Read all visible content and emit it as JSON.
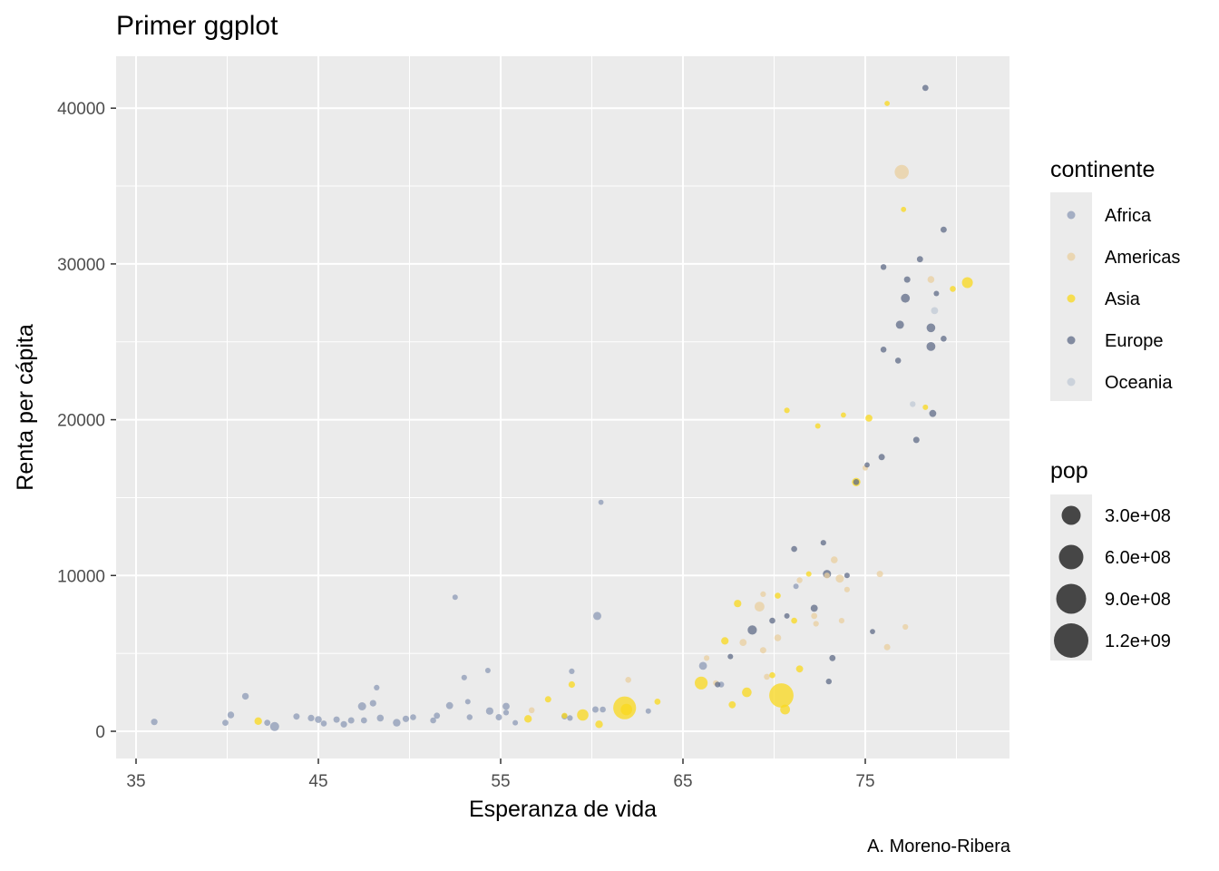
{
  "title": "Primer ggplot",
  "caption": "A. Moreno-Ribera",
  "colors": {
    "panel": "#ebebeb",
    "grid": "#ffffff",
    "Africa": "#8c9ab5",
    "Americas": "#e9cf9f",
    "Asia": "#fad81c",
    "Europe": "#5f6b87",
    "Oceania": "#c0cad6"
  },
  "chart_data": {
    "type": "scatter",
    "xlabel": "Esperanza de vida",
    "ylabel": "Renta per cápita",
    "xlim": [
      35,
      82
    ],
    "ylim": [
      0,
      42000
    ],
    "x_ticks": [
      35,
      45,
      55,
      65,
      75
    ],
    "x_tick_labels": [
      "35",
      "45",
      "55",
      "65",
      "75"
    ],
    "y_ticks": [
      0,
      10000,
      20000,
      30000,
      40000
    ],
    "y_tick_labels": [
      "0",
      "10000",
      "20000",
      "30000",
      "40000"
    ],
    "grid": true,
    "legend_position": "right",
    "color_legend": {
      "title": "continente",
      "entries": [
        "Africa",
        "Americas",
        "Asia",
        "Europe",
        "Oceania"
      ]
    },
    "size_legend": {
      "title": "pop",
      "entries": [
        {
          "label": "3.0e+08",
          "value": 300000000
        },
        {
          "label": "6.0e+08",
          "value": 600000000
        },
        {
          "label": "9.0e+08",
          "value": 900000000
        },
        {
          "label": "1.2e+09",
          "value": 1200000000
        }
      ]
    },
    "series": [
      {
        "name": "Africa",
        "points": [
          {
            "x": 36.0,
            "y": 600,
            "pop": 12000000
          },
          {
            "x": 39.9,
            "y": 550,
            "pop": 8000000
          },
          {
            "x": 40.2,
            "y": 1050,
            "pop": 13000000
          },
          {
            "x": 41.0,
            "y": 2250,
            "pop": 14000000
          },
          {
            "x": 42.2,
            "y": 550,
            "pop": 8000000
          },
          {
            "x": 42.6,
            "y": 300,
            "pop": 65000000
          },
          {
            "x": 43.8,
            "y": 950,
            "pop": 10000000
          },
          {
            "x": 44.6,
            "y": 850,
            "pop": 12000000
          },
          {
            "x": 45.0,
            "y": 750,
            "pop": 15000000
          },
          {
            "x": 45.3,
            "y": 500,
            "pop": 6000000
          },
          {
            "x": 46.0,
            "y": 750,
            "pop": 10000000
          },
          {
            "x": 46.4,
            "y": 450,
            "pop": 12000000
          },
          {
            "x": 46.8,
            "y": 700,
            "pop": 9000000
          },
          {
            "x": 47.4,
            "y": 1600,
            "pop": 40000000
          },
          {
            "x": 47.5,
            "y": 700,
            "pop": 7000000
          },
          {
            "x": 48.0,
            "y": 1800,
            "pop": 12000000
          },
          {
            "x": 48.2,
            "y": 2800,
            "pop": 3000000
          },
          {
            "x": 48.4,
            "y": 850,
            "pop": 15000000
          },
          {
            "x": 49.3,
            "y": 550,
            "pop": 30000000
          },
          {
            "x": 49.8,
            "y": 800,
            "pop": 11000000
          },
          {
            "x": 50.2,
            "y": 900,
            "pop": 5000000
          },
          {
            "x": 51.3,
            "y": 700,
            "pop": 6000000
          },
          {
            "x": 51.5,
            "y": 1000,
            "pop": 8000000
          },
          {
            "x": 52.2,
            "y": 1650,
            "pop": 20000000
          },
          {
            "x": 52.5,
            "y": 8600,
            "pop": 2000000
          },
          {
            "x": 53.0,
            "y": 3450,
            "pop": 3000000
          },
          {
            "x": 53.2,
            "y": 1900,
            "pop": 2000000
          },
          {
            "x": 53.3,
            "y": 900,
            "pop": 4000000
          },
          {
            "x": 54.3,
            "y": 3900,
            "pop": 2000000
          },
          {
            "x": 54.4,
            "y": 1300,
            "pop": 25000000
          },
          {
            "x": 54.9,
            "y": 900,
            "pop": 10000000
          },
          {
            "x": 55.3,
            "y": 1600,
            "pop": 18000000
          },
          {
            "x": 55.3,
            "y": 1200,
            "pop": 3000000
          },
          {
            "x": 55.8,
            "y": 550,
            "pop": 2000000
          },
          {
            "x": 58.5,
            "y": 950,
            "pop": 5000000
          },
          {
            "x": 58.8,
            "y": 850,
            "pop": 3000000
          },
          {
            "x": 58.9,
            "y": 3850,
            "pop": 3000000
          },
          {
            "x": 60.2,
            "y": 1400,
            "pop": 10000000
          },
          {
            "x": 60.3,
            "y": 7400,
            "pop": 40000000
          },
          {
            "x": 60.5,
            "y": 14700,
            "pop": 1000000
          },
          {
            "x": 60.6,
            "y": 1400,
            "pop": 6000000
          },
          {
            "x": 63.1,
            "y": 1300,
            "pop": 2000000
          },
          {
            "x": 66.1,
            "y": 4200,
            "pop": 35000000
          },
          {
            "x": 67.1,
            "y": 3000,
            "pop": 4000000
          },
          {
            "x": 71.2,
            "y": 9300,
            "pop": 2000000
          }
        ]
      },
      {
        "name": "Americas",
        "points": [
          {
            "x": 56.7,
            "y": 1350,
            "pop": 5000000
          },
          {
            "x": 62.0,
            "y": 3300,
            "pop": 5000000
          },
          {
            "x": 66.3,
            "y": 4700,
            "pop": 3000000
          },
          {
            "x": 66.8,
            "y": 3100,
            "pop": 3000000
          },
          {
            "x": 68.3,
            "y": 5700,
            "pop": 18000000
          },
          {
            "x": 69.2,
            "y": 8000,
            "pop": 88000000
          },
          {
            "x": 69.4,
            "y": 5200,
            "pop": 9000000
          },
          {
            "x": 69.4,
            "y": 8800,
            "pop": 3000000
          },
          {
            "x": 69.6,
            "y": 3500,
            "pop": 6000000
          },
          {
            "x": 70.2,
            "y": 6000,
            "pop": 15000000
          },
          {
            "x": 71.4,
            "y": 9700,
            "pop": 4000000
          },
          {
            "x": 72.2,
            "y": 7400,
            "pop": 7000000
          },
          {
            "x": 72.3,
            "y": 6900,
            "pop": 3000000
          },
          {
            "x": 72.9,
            "y": 10000,
            "pop": 4000000
          },
          {
            "x": 73.3,
            "y": 11000,
            "pop": 15000000
          },
          {
            "x": 73.6,
            "y": 9800,
            "pop": 40000000
          },
          {
            "x": 73.7,
            "y": 7100,
            "pop": 3000000
          },
          {
            "x": 74.0,
            "y": 9100,
            "pop": 3000000
          },
          {
            "x": 75.0,
            "y": 16900,
            "pop": 2000000
          },
          {
            "x": 75.8,
            "y": 10100,
            "pop": 10000000
          },
          {
            "x": 76.2,
            "y": 5400,
            "pop": 10000000
          },
          {
            "x": 77.2,
            "y": 6700,
            "pop": 3000000
          },
          {
            "x": 77.0,
            "y": 35900,
            "pop": 300000000
          },
          {
            "x": 78.6,
            "y": 29000,
            "pop": 15000000
          }
        ]
      },
      {
        "name": "Asia",
        "points": [
          {
            "x": 41.7,
            "y": 650,
            "pop": 28000000
          },
          {
            "x": 56.5,
            "y": 800,
            "pop": 28000000
          },
          {
            "x": 57.6,
            "y": 2050,
            "pop": 10000000
          },
          {
            "x": 58.5,
            "y": 1000,
            "pop": 4000000
          },
          {
            "x": 58.9,
            "y": 3000,
            "pop": 12000000
          },
          {
            "x": 59.5,
            "y": 1050,
            "pop": 150000000
          },
          {
            "x": 60.4,
            "y": 450,
            "pop": 30000000
          },
          {
            "x": 61.8,
            "y": 1500,
            "pop": 1100000000
          },
          {
            "x": 61.9,
            "y": 1400,
            "pop": 150000000
          },
          {
            "x": 63.6,
            "y": 1900,
            "pop": 7000000
          },
          {
            "x": 66.0,
            "y": 3100,
            "pop": 220000000
          },
          {
            "x": 67.3,
            "y": 5800,
            "pop": 25000000
          },
          {
            "x": 67.7,
            "y": 1700,
            "pop": 18000000
          },
          {
            "x": 68.0,
            "y": 8200,
            "pop": 25000000
          },
          {
            "x": 68.5,
            "y": 2500,
            "pop": 80000000
          },
          {
            "x": 69.9,
            "y": 3600,
            "pop": 5000000
          },
          {
            "x": 70.2,
            "y": 8700,
            "pop": 6000000
          },
          {
            "x": 70.4,
            "y": 2300,
            "pop": 1300000000
          },
          {
            "x": 70.6,
            "y": 1400,
            "pop": 85000000
          },
          {
            "x": 70.7,
            "y": 20600,
            "pop": 3000000
          },
          {
            "x": 71.1,
            "y": 7100,
            "pop": 5000000
          },
          {
            "x": 71.4,
            "y": 4000,
            "pop": 20000000
          },
          {
            "x": 71.9,
            "y": 10100,
            "pop": 2000000
          },
          {
            "x": 72.4,
            "y": 19600,
            "pop": 2000000
          },
          {
            "x": 73.8,
            "y": 20300,
            "pop": 1000000
          },
          {
            "x": 74.5,
            "y": 16000,
            "pop": 48000000
          },
          {
            "x": 75.2,
            "y": 20100,
            "pop": 20000000
          },
          {
            "x": 76.2,
            "y": 40300,
            "pop": 1000000
          },
          {
            "x": 77.1,
            "y": 33500,
            "pop": 1000000
          },
          {
            "x": 78.3,
            "y": 20800,
            "pop": 2000000
          },
          {
            "x": 79.8,
            "y": 28400,
            "pop": 5000000
          },
          {
            "x": 80.6,
            "y": 28800,
            "pop": 127000000
          }
        ]
      },
      {
        "name": "Europe",
        "points": [
          {
            "x": 66.9,
            "y": 3000,
            "pop": 3000000
          },
          {
            "x": 67.6,
            "y": 4800,
            "pop": 2000000
          },
          {
            "x": 68.8,
            "y": 6500,
            "pop": 70000000
          },
          {
            "x": 69.9,
            "y": 7100,
            "pop": 6000000
          },
          {
            "x": 70.7,
            "y": 7400,
            "pop": 2000000
          },
          {
            "x": 71.1,
            "y": 11700,
            "pop": 5000000
          },
          {
            "x": 72.2,
            "y": 7900,
            "pop": 20000000
          },
          {
            "x": 72.7,
            "y": 12100,
            "pop": 3000000
          },
          {
            "x": 72.9,
            "y": 10100,
            "pop": 40000000
          },
          {
            "x": 73.0,
            "y": 3200,
            "pop": 4000000
          },
          {
            "x": 73.2,
            "y": 4700,
            "pop": 8000000
          },
          {
            "x": 74.0,
            "y": 10000,
            "pop": 2000000
          },
          {
            "x": 74.5,
            "y": 16000,
            "pop": 5000000
          },
          {
            "x": 75.1,
            "y": 17100,
            "pop": 1000000
          },
          {
            "x": 75.4,
            "y": 6400,
            "pop": 1000000
          },
          {
            "x": 75.9,
            "y": 17600,
            "pop": 10000000
          },
          {
            "x": 76.0,
            "y": 24500,
            "pop": 5000000
          },
          {
            "x": 76.0,
            "y": 29800,
            "pop": 4000000
          },
          {
            "x": 76.8,
            "y": 23800,
            "pop": 5000000
          },
          {
            "x": 76.9,
            "y": 26100,
            "pop": 40000000
          },
          {
            "x": 77.2,
            "y": 27800,
            "pop": 58000000
          },
          {
            "x": 77.3,
            "y": 29000,
            "pop": 10000000
          },
          {
            "x": 77.8,
            "y": 18700,
            "pop": 10000000
          },
          {
            "x": 78.0,
            "y": 30300,
            "pop": 8000000
          },
          {
            "x": 78.3,
            "y": 41300,
            "pop": 7000000
          },
          {
            "x": 78.6,
            "y": 25900,
            "pop": 55000000
          },
          {
            "x": 78.6,
            "y": 24700,
            "pop": 60000000
          },
          {
            "x": 78.7,
            "y": 20400,
            "pop": 20000000
          },
          {
            "x": 78.9,
            "y": 28100,
            "pop": 2000000
          },
          {
            "x": 79.3,
            "y": 25200,
            "pop": 5000000
          },
          {
            "x": 79.3,
            "y": 32200,
            "pop": 7000000
          }
        ]
      },
      {
        "name": "Oceania",
        "points": [
          {
            "x": 77.6,
            "y": 21000,
            "pop": 4000000
          },
          {
            "x": 78.8,
            "y": 27000,
            "pop": 18000000
          }
        ]
      }
    ]
  }
}
